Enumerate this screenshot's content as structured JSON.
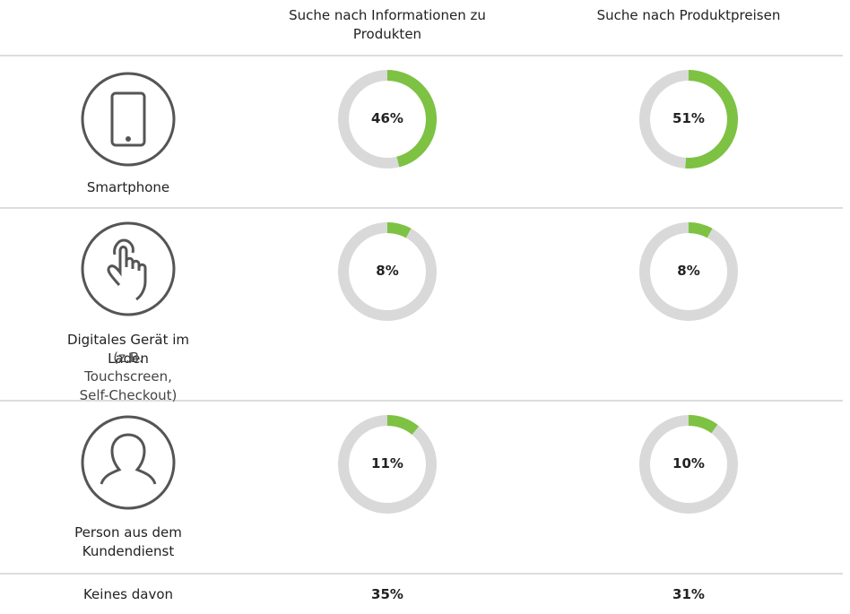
{
  "table": {
    "columns": [
      "Suche nach Informationen zu Produkten",
      "Suche nach Produktpreisen"
    ],
    "rows": [
      {
        "label": "Smartphone",
        "values": [
          46,
          51
        ],
        "value_labels": [
          "46%",
          "51%"
        ]
      },
      {
        "label": "Digitales Gerät im Laden",
        "note": "(z.B. Touchscreen, Self-Checkout)",
        "values": [
          8,
          8
        ],
        "value_labels": [
          "8%",
          "8%"
        ]
      },
      {
        "label": "Person aus dem Kundendienst",
        "values": [
          11,
          10
        ],
        "value_labels": [
          "11%",
          "10%"
        ]
      },
      {
        "label": "Keines davon",
        "values": [
          35,
          31
        ],
        "value_labels": [
          "35%",
          "31%"
        ]
      }
    ],
    "colors": {
      "filled": "#7dc242",
      "track": "#d9d9d9"
    }
  }
}
